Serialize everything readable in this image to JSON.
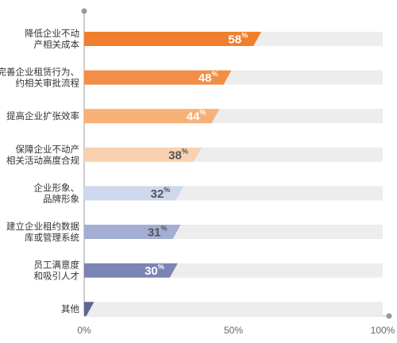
{
  "chart_data": {
    "type": "bar",
    "orientation": "horizontal",
    "categories": [
      [
        "降低企业不动",
        "产相关成本"
      ],
      [
        "完善企业租赁行为、",
        "约相关审批流程"
      ],
      [
        "提高企业扩张效率"
      ],
      [
        "保障企业不动产",
        "相关活动高度合规"
      ],
      [
        "企业形象、",
        "品牌形象"
      ],
      [
        "建立企业租约数据",
        "库或管理系统"
      ],
      [
        "员工满意度",
        "和吸引人才"
      ],
      [
        "其他"
      ]
    ],
    "values": [
      58,
      48,
      44,
      38,
      32,
      31,
      30,
      2
    ],
    "value_suffix": "%",
    "xlim": [
      0,
      100
    ],
    "xticks": [
      0,
      50,
      100
    ],
    "xtick_labels": [
      "0%",
      "50%",
      "100%"
    ],
    "bar_colors": [
      "#F07F2D",
      "#F28E45",
      "#F7B076",
      "#F9D1B0",
      "#CDD8EC",
      "#A4AED3",
      "#7A84B5",
      "#5E6694"
    ],
    "label_colors": [
      "#ffffff",
      "#ffffff",
      "#ffffff",
      "#555555",
      "#555555",
      "#555555",
      "#ffffff",
      "#ffffff"
    ],
    "track_color": "#EDEDED",
    "axis_color": "#BBBBBB",
    "grid": false,
    "legend": false
  }
}
